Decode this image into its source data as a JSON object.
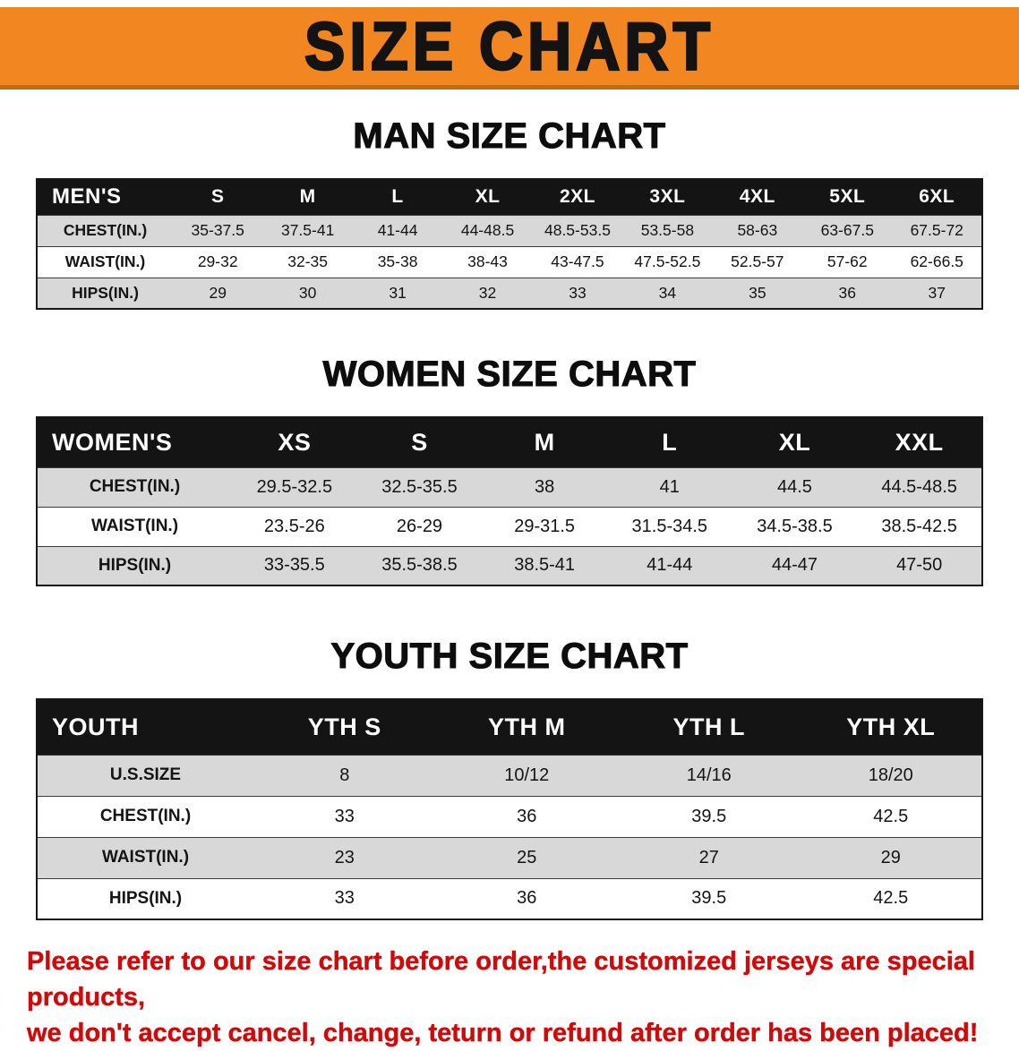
{
  "colors": {
    "banner-bg": "#f28722",
    "table-header-bg": "#141414",
    "row-stripe": "#d8d8d8",
    "notice-red": "#cf0a0a"
  },
  "banner": {
    "title": "SIZE CHART"
  },
  "sections": [
    {
      "id": "mens",
      "heading": "MAN SIZE CHART",
      "table": {
        "header": [
          "MEN'S",
          "S",
          "M",
          "L",
          "XL",
          "2XL",
          "3XL",
          "4XL",
          "5XL",
          "6XL"
        ],
        "rows": [
          [
            "CHEST(IN.)",
            "35-37.5",
            "37.5-41",
            "41-44",
            "44-48.5",
            "48.5-53.5",
            "53.5-58",
            "58-63",
            "63-67.5",
            "67.5-72"
          ],
          [
            "WAIST(IN.)",
            "29-32",
            "32-35",
            "35-38",
            "38-43",
            "43-47.5",
            "47.5-52.5",
            "52.5-57",
            "57-62",
            "62-66.5"
          ],
          [
            "HIPS(IN.)",
            "29",
            "30",
            "31",
            "32",
            "33",
            "34",
            "35",
            "36",
            "37"
          ]
        ]
      }
    },
    {
      "id": "womens",
      "heading": "WOMEN SIZE CHART",
      "table": {
        "header": [
          "WOMEN'S",
          "XS",
          "S",
          "M",
          "L",
          "XL",
          "XXL"
        ],
        "rows": [
          [
            "CHEST(IN.)",
            "29.5-32.5",
            "32.5-35.5",
            "38",
            "41",
            "44.5",
            "44.5-48.5"
          ],
          [
            "WAIST(IN.)",
            "23.5-26",
            "26-29",
            "29-31.5",
            "31.5-34.5",
            "34.5-38.5",
            "38.5-42.5"
          ],
          [
            "HIPS(IN.)",
            "33-35.5",
            "35.5-38.5",
            "38.5-41",
            "41-44",
            "44-47",
            "47-50"
          ]
        ]
      }
    },
    {
      "id": "youth",
      "heading": "YOUTH SIZE CHART",
      "table": {
        "header": [
          "YOUTH",
          "YTH S",
          "YTH M",
          "YTH L",
          "YTH XL"
        ],
        "rows": [
          [
            "U.S.SIZE",
            "8",
            "10/12",
            "14/16",
            "18/20"
          ],
          [
            "CHEST(IN.)",
            "33",
            "36",
            "39.5",
            "42.5"
          ],
          [
            "WAIST(IN.)",
            "23",
            "25",
            "27",
            "29"
          ],
          [
            "HIPS(IN.)",
            "33",
            "36",
            "39.5",
            "42.5"
          ]
        ]
      }
    }
  ],
  "footer": {
    "line1": "Please refer to our size chart before order,the customized jerseys are special products,",
    "line2": "we don't accept cancel, change, teturn or refund after order has been placed!"
  }
}
